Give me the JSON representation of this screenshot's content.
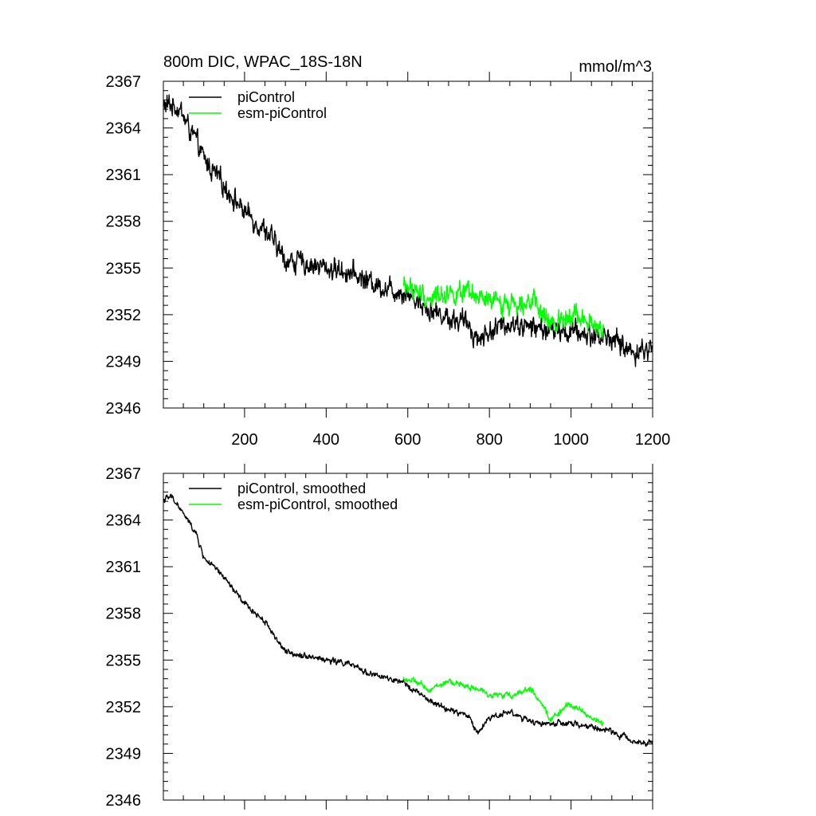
{
  "chart_data": [
    {
      "type": "line",
      "title": "800m DIC, WPAC_18S-18N",
      "units": "mmol/m^3",
      "xlim": [
        1,
        1200
      ],
      "ylim": [
        2346,
        2367
      ],
      "xticks": [
        200,
        400,
        600,
        800,
        1000,
        1200
      ],
      "yticks": [
        2346,
        2349,
        2352,
        2355,
        2358,
        2361,
        2364,
        2367
      ],
      "show_x_tick_labels": true,
      "legend_position": "top-left",
      "series": [
        {
          "name": "piControl",
          "color": "#000000",
          "noise": 0.9,
          "x": [
            1,
            20,
            40,
            60,
            80,
            100,
            150,
            200,
            250,
            300,
            350,
            400,
            450,
            500,
            550,
            600,
            650,
            700,
            750,
            770,
            800,
            850,
            900,
            950,
            1000,
            1050,
            1100,
            1150,
            1200
          ],
          "values": [
            2365.4,
            2365.5,
            2365.3,
            2364.2,
            2363.2,
            2362.0,
            2360.3,
            2358.6,
            2357.5,
            2355.5,
            2355.3,
            2355.0,
            2354.8,
            2354.2,
            2353.7,
            2353.4,
            2352.4,
            2351.8,
            2351.4,
            2350.4,
            2350.9,
            2351.5,
            2351.2,
            2351.0,
            2350.9,
            2350.7,
            2350.5,
            2349.6,
            2349.8
          ]
        },
        {
          "name": "esm-piControl",
          "color": "#00ff00",
          "noise": 0.9,
          "x": [
            590,
            620,
            650,
            700,
            750,
            800,
            850,
            900,
            920,
            950,
            1000,
            1050,
            1080
          ],
          "values": [
            2353.9,
            2353.5,
            2353.0,
            2353.5,
            2353.2,
            2352.8,
            2352.7,
            2353.1,
            2352.3,
            2351.3,
            2352.2,
            2351.3,
            2350.9
          ]
        }
      ]
    },
    {
      "type": "line",
      "title": "",
      "units": "",
      "xlim": [
        1,
        1200
      ],
      "ylim": [
        2346,
        2367
      ],
      "xticks": [
        200,
        400,
        600,
        800,
        1000,
        1200
      ],
      "yticks": [
        2346,
        2349,
        2352,
        2355,
        2358,
        2361,
        2364,
        2367
      ],
      "show_x_tick_labels": false,
      "legend_position": "top-left",
      "series": [
        {
          "name": "piControl, smoothed",
          "color": "#000000",
          "noise": 0.25,
          "x": [
            1,
            20,
            30,
            60,
            80,
            100,
            150,
            200,
            250,
            300,
            350,
            400,
            450,
            500,
            550,
            600,
            650,
            700,
            750,
            770,
            800,
            850,
            900,
            950,
            1000,
            1050,
            1100,
            1150,
            1200
          ],
          "values": [
            2365.3,
            2365.5,
            2365.2,
            2364.0,
            2363.2,
            2361.6,
            2360.3,
            2358.6,
            2357.5,
            2355.5,
            2355.3,
            2355.0,
            2354.8,
            2354.2,
            2353.8,
            2353.4,
            2352.4,
            2351.8,
            2351.4,
            2350.3,
            2351.3,
            2351.7,
            2351.0,
            2350.9,
            2350.9,
            2350.7,
            2350.4,
            2349.8,
            2349.7
          ]
        },
        {
          "name": "esm-piControl, smoothed",
          "color": "#00ff00",
          "noise": 0.25,
          "x": [
            590,
            620,
            650,
            700,
            750,
            800,
            850,
            900,
            920,
            950,
            1000,
            1050,
            1080
          ],
          "values": [
            2353.8,
            2353.6,
            2353.1,
            2353.6,
            2353.3,
            2352.8,
            2352.7,
            2353.2,
            2352.4,
            2351.2,
            2352.2,
            2351.3,
            2350.9
          ]
        }
      ]
    }
  ]
}
